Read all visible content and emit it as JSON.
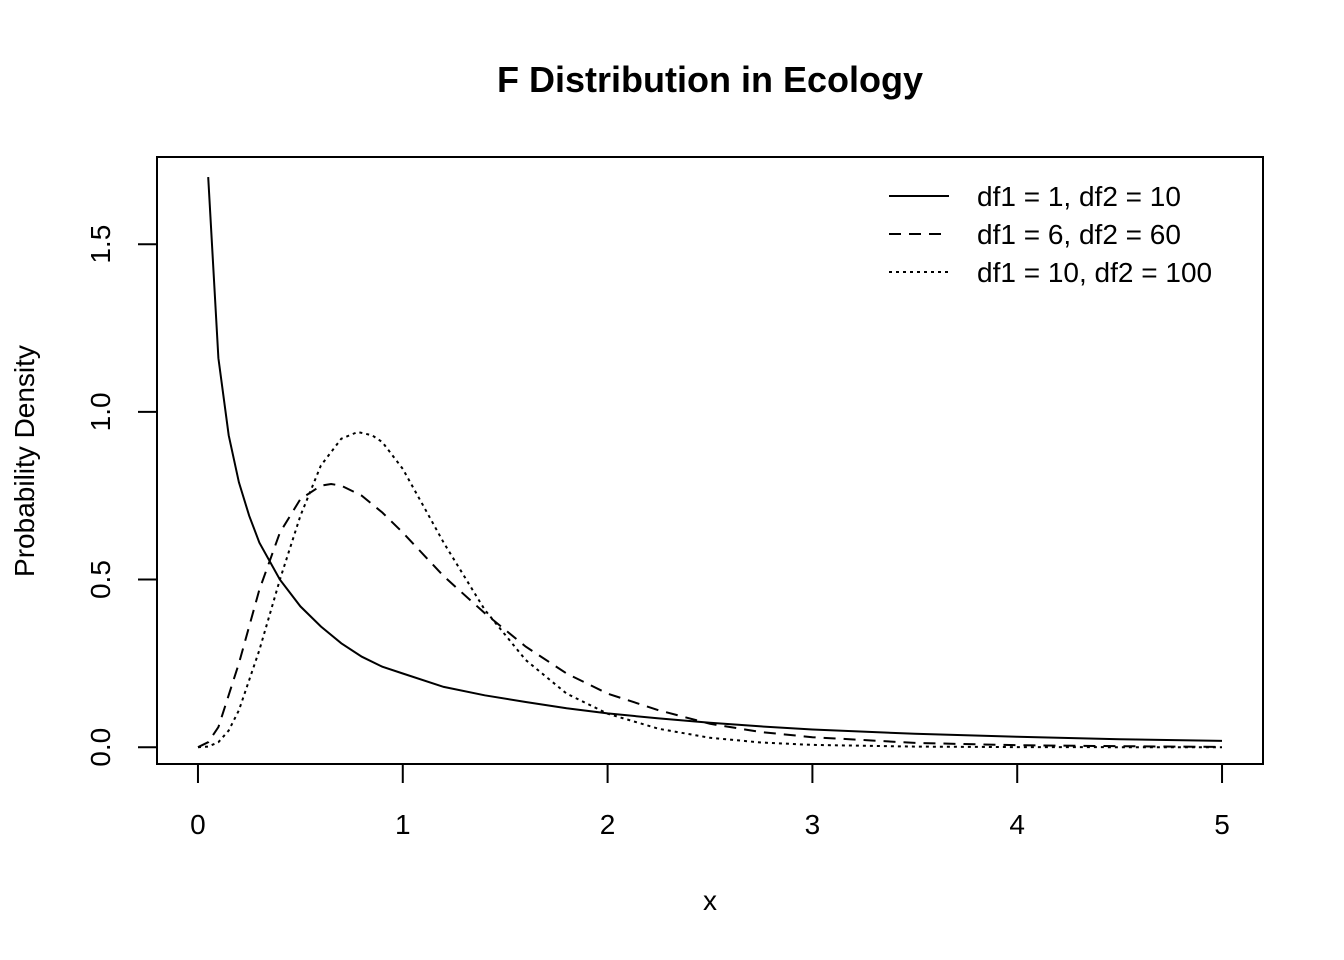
{
  "chart_data": {
    "type": "line",
    "title": "F Distribution in Ecology",
    "xlabel": "x",
    "ylabel": "Probability Density",
    "xlim": [
      -0.2,
      5.2
    ],
    "ylim": [
      -0.05,
      1.76
    ],
    "x_ticks": [
      0,
      1,
      2,
      3,
      4,
      5
    ],
    "x_tick_labels": [
      "0",
      "1",
      "2",
      "3",
      "4",
      "5"
    ],
    "y_ticks": [
      0,
      0.5,
      1,
      1.5
    ],
    "y_tick_labels": [
      "0.0",
      "0.5",
      "1.0",
      "1.5"
    ],
    "grid": false,
    "legend_position": "top-right",
    "series": [
      {
        "name": "df1 = 1, df2 = 10",
        "line_style": "solid",
        "x": [
          0.05,
          0.1,
          0.15,
          0.2,
          0.25,
          0.3,
          0.4,
          0.5,
          0.6,
          0.7,
          0.8,
          0.9,
          1.0,
          1.2,
          1.4,
          1.6,
          1.8,
          2.0,
          2.25,
          2.5,
          2.75,
          3.0,
          3.5,
          4.0,
          4.5,
          5.0
        ],
        "y": [
          1.7,
          1.16,
          0.93,
          0.79,
          0.69,
          0.61,
          0.5,
          0.42,
          0.36,
          0.31,
          0.27,
          0.24,
          0.22,
          0.18,
          0.155,
          0.135,
          0.116,
          0.101,
          0.086,
          0.073,
          0.062,
          0.053,
          0.04,
          0.031,
          0.024,
          0.019
        ]
      },
      {
        "name": "df1 = 6, df2 = 60",
        "line_style": "dashed",
        "x": [
          0,
          0.05,
          0.1,
          0.2,
          0.3,
          0.4,
          0.5,
          0.6,
          0.65,
          0.7,
          0.8,
          0.9,
          1.0,
          1.2,
          1.4,
          1.6,
          1.8,
          2.0,
          2.25,
          2.5,
          2.75,
          3.0,
          3.5,
          4.0,
          4.5,
          5.0
        ],
        "y": [
          0,
          0.015,
          0.06,
          0.25,
          0.47,
          0.64,
          0.74,
          0.78,
          0.785,
          0.78,
          0.75,
          0.7,
          0.64,
          0.51,
          0.4,
          0.3,
          0.22,
          0.16,
          0.11,
          0.07,
          0.045,
          0.03,
          0.013,
          0.006,
          0.003,
          0.001
        ]
      },
      {
        "name": "df1 = 10, df2 = 100",
        "line_style": "dotted",
        "x": [
          0,
          0.05,
          0.1,
          0.15,
          0.2,
          0.3,
          0.4,
          0.5,
          0.6,
          0.7,
          0.78,
          0.85,
          0.9,
          1.0,
          1.1,
          1.2,
          1.4,
          1.6,
          1.8,
          2.0,
          2.25,
          2.5,
          2.75,
          3.0,
          3.5,
          4.0,
          4.5,
          5.0
        ],
        "y": [
          0,
          0.002,
          0.015,
          0.05,
          0.11,
          0.29,
          0.5,
          0.69,
          0.84,
          0.92,
          0.94,
          0.93,
          0.91,
          0.83,
          0.72,
          0.61,
          0.41,
          0.26,
          0.16,
          0.1,
          0.055,
          0.028,
          0.014,
          0.007,
          0.002,
          0.0005,
          0.0001,
          0
        ]
      }
    ]
  }
}
